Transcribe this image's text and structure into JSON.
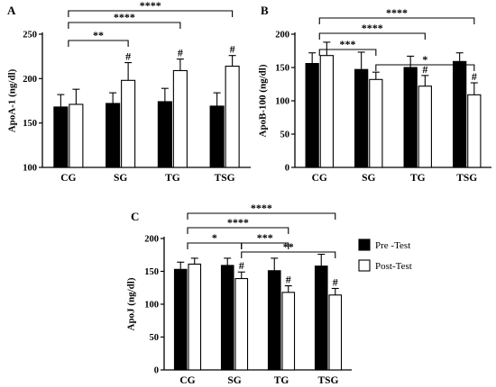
{
  "chart_data": [
    {
      "type": "bar",
      "panel_label": "A",
      "ylabel": "ApoA-1 (ng/dl)",
      "categories": [
        "CG",
        "SG",
        "TG",
        "TSG"
      ],
      "ylim": [
        100,
        250
      ],
      "yticks": [
        100,
        150,
        200,
        250
      ],
      "series": [
        {
          "name": "Pre -Test",
          "values": [
            168,
            172,
            174,
            169
          ],
          "errors": [
            14,
            12,
            15,
            15
          ],
          "color": "#000000"
        },
        {
          "name": "Post-Test",
          "values": [
            171,
            198,
            209,
            214
          ],
          "errors": [
            17,
            20,
            13,
            12
          ],
          "color": "#ffffff"
        }
      ],
      "hash_marks": [
        "",
        "#",
        "#",
        "#"
      ],
      "significance": [
        {
          "from": 0,
          "to": 1,
          "label": "**"
        },
        {
          "from": 0,
          "to": 2,
          "label": "****"
        },
        {
          "from": 0,
          "to": 3,
          "label": "****"
        }
      ]
    },
    {
      "type": "bar",
      "panel_label": "B",
      "ylabel": "ApoB-100 (ng/dl)",
      "categories": [
        "CG",
        "SG",
        "TG",
        "TSG"
      ],
      "ylim": [
        0,
        200
      ],
      "yticks": [
        0,
        50,
        100,
        150,
        200
      ],
      "series": [
        {
          "name": "Pre -Test",
          "values": [
            156,
            147,
            150,
            159
          ],
          "errors": [
            16,
            26,
            17,
            13
          ],
          "color": "#000000"
        },
        {
          "name": "Post-Test",
          "values": [
            168,
            132,
            122,
            109
          ],
          "errors": [
            20,
            11,
            16,
            18
          ],
          "color": "#ffffff"
        }
      ],
      "hash_marks": [
        "",
        "",
        "#",
        "#"
      ],
      "significance": [
        {
          "from": 0,
          "to": 1,
          "label": "***"
        },
        {
          "from": 0,
          "to": 2,
          "label": "****"
        },
        {
          "from": 0,
          "to": 3,
          "label": "****"
        },
        {
          "from": 1,
          "to": 3,
          "label": "*"
        }
      ]
    },
    {
      "type": "bar",
      "panel_label": "C",
      "ylabel": "ApoJ (ng/dl)",
      "categories": [
        "CG",
        "SG",
        "TG",
        "TSG"
      ],
      "ylim": [
        0,
        200
      ],
      "yticks": [
        0,
        50,
        100,
        150,
        200
      ],
      "series": [
        {
          "name": "Pre -Test",
          "values": [
            153,
            159,
            151,
            158
          ],
          "errors": [
            11,
            11,
            19,
            18
          ],
          "color": "#000000"
        },
        {
          "name": "Post-Test",
          "values": [
            161,
            139,
            118,
            114
          ],
          "errors": [
            9,
            10,
            10,
            10
          ],
          "color": "#ffffff"
        }
      ],
      "hash_marks": [
        "",
        "#",
        "#",
        "#"
      ],
      "significance": [
        {
          "from": 0,
          "to": 1,
          "label": "*"
        },
        {
          "from": 0,
          "to": 2,
          "label": "****"
        },
        {
          "from": 0,
          "to": 3,
          "label": "****"
        },
        {
          "from": 1,
          "to": 2,
          "label": "***"
        },
        {
          "from": 1,
          "to": 3,
          "label": "**"
        }
      ],
      "legend": [
        "Pre -Test",
        "Post-Test"
      ]
    }
  ]
}
